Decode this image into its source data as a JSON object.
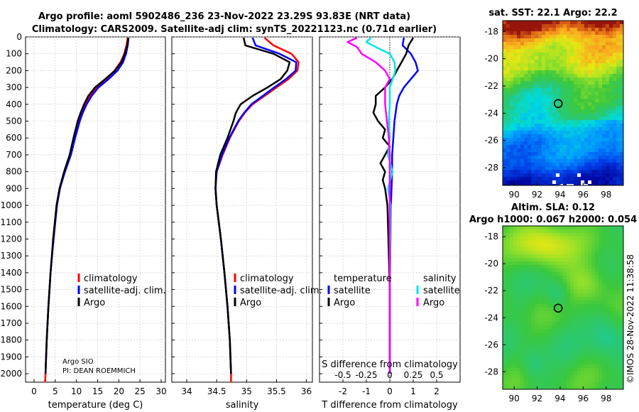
{
  "title_line1": "Argo profile: aoml 5902486_236 23-Nov-2022 23.29S 93.83E (NRT data)",
  "title_line2": "Climatology: CARS2009. Satellite-adj clim: synTS_20221123.nc (0.71d earlier)",
  "colors": {
    "climatology": "#ff0000",
    "satellite": "#0000ff",
    "argo": "#000000",
    "sat_salinity": "#00e5ee",
    "argo_salinity": "#ff00ff"
  },
  "legends": {
    "temp_panel": [
      "climatology",
      "satellite-adj. clim.",
      "Argo"
    ],
    "sal_panel": [
      "climatology",
      "satellite-adj. clim.",
      "Argo"
    ],
    "diff_temp_title": "temperature",
    "diff_temp": [
      "satellite",
      "Argo"
    ],
    "diff_sal_title": "salinity",
    "diff_sal": [
      "satellite",
      "Argo"
    ]
  },
  "credits": {
    "institution": "Argo SIO",
    "pi": "PI: DEAN ROEMMICH"
  },
  "stamp": "©IMOS 28-Nov-2022 11:38:58",
  "sst_map": {
    "title": "sat. SST: 22.1 Argo: 22.2"
  },
  "sla_map": {
    "title1": "Altim. SLA: 0.12",
    "title2": "Argo h1000: 0.067 h2000: 0.054"
  },
  "chart_data": [
    {
      "type": "line",
      "name": "temperature",
      "xlabel": "temperature (deg C)",
      "ylabel": "",
      "xlim": [
        -2,
        31
      ],
      "ylim": [
        2050,
        0
      ],
      "xticks": [
        "0",
        "5",
        "10",
        "15",
        "20",
        "25",
        "30"
      ],
      "xtick_values": [
        0,
        5,
        10,
        15,
        20,
        25,
        30
      ],
      "yticks": [
        "0",
        "100",
        "200",
        "300",
        "400",
        "500",
        "600",
        "700",
        "800",
        "900",
        "1000",
        "1100",
        "1200",
        "1300",
        "1400",
        "1500",
        "1600",
        "1700",
        "1800",
        "1900",
        "2000"
      ],
      "series": [
        {
          "name": "climatology",
          "pressure": [
            5,
            50,
            100,
            150,
            200,
            250,
            300,
            350,
            400,
            450,
            500,
            600,
            700,
            800,
            900,
            1000,
            1200,
            1400,
            1600,
            1800,
            2000,
            2050
          ],
          "values": [
            22.1,
            21.8,
            21.3,
            20.4,
            19.0,
            17.0,
            14.7,
            13.2,
            12.1,
            11.3,
            10.6,
            9.5,
            8.6,
            7.2,
            6.1,
            5.4,
            4.6,
            3.9,
            3.4,
            3.0,
            2.7,
            2.6
          ]
        },
        {
          "name": "satellite-adj. clim.",
          "pressure": [
            5,
            50,
            100,
            150,
            200,
            250,
            300,
            350,
            400,
            450,
            500,
            600,
            700,
            800,
            900,
            1000,
            1200,
            1400,
            1600,
            1800,
            2000
          ],
          "values": [
            22.3,
            22.1,
            21.7,
            21.0,
            19.7,
            17.6,
            15.2,
            13.6,
            12.4,
            11.5,
            10.8,
            9.7,
            8.7,
            7.3,
            6.1,
            5.4,
            4.6,
            3.9,
            3.4,
            3.0,
            2.7
          ]
        },
        {
          "name": "Argo",
          "pressure": [
            5,
            50,
            100,
            150,
            200,
            250,
            300,
            350,
            400,
            450,
            500,
            600,
            700,
            800,
            900,
            1000,
            1200,
            1400,
            1600,
            1800,
            2000
          ],
          "values": [
            22.2,
            22.0,
            21.4,
            20.6,
            19.1,
            16.8,
            14.4,
            12.8,
            11.8,
            11.0,
            10.3,
            9.3,
            8.4,
            7.1,
            6.0,
            5.3,
            4.5,
            3.9,
            3.4,
            3.0,
            2.7
          ]
        }
      ]
    },
    {
      "type": "line",
      "name": "salinity",
      "xlabel": "salinity",
      "ylabel": "",
      "xlim": [
        33.75,
        36.1
      ],
      "ylim": [
        2050,
        0
      ],
      "xticks": [
        "34",
        "34.5",
        "35",
        "35.5",
        "36"
      ],
      "xtick_values": [
        34,
        34.5,
        35,
        35.5,
        36
      ],
      "series": [
        {
          "name": "climatology",
          "pressure": [
            5,
            50,
            100,
            150,
            200,
            250,
            300,
            350,
            400,
            450,
            500,
            600,
            700,
            800,
            900,
            1000,
            1200,
            1400,
            1600,
            1800,
            2000,
            2050
          ],
          "values": [
            35.3,
            35.45,
            35.75,
            35.87,
            35.85,
            35.7,
            35.5,
            35.3,
            35.1,
            34.97,
            34.87,
            34.72,
            34.6,
            34.5,
            34.48,
            34.5,
            34.57,
            34.63,
            34.68,
            34.72,
            34.74,
            34.74
          ]
        },
        {
          "name": "satellite-adj. clim.",
          "pressure": [
            5,
            50,
            100,
            150,
            200,
            250,
            300,
            350,
            400,
            450,
            500,
            600,
            700,
            800,
            900,
            1000,
            1200,
            1400,
            1600,
            1800,
            2000
          ],
          "values": [
            35.1,
            35.15,
            35.55,
            35.83,
            35.82,
            35.66,
            35.46,
            35.27,
            35.08,
            34.96,
            34.86,
            34.71,
            34.59,
            34.5,
            34.48,
            34.5,
            34.57,
            34.63,
            34.68,
            34.72,
            34.74
          ]
        },
        {
          "name": "Argo",
          "pressure": [
            5,
            50,
            100,
            150,
            200,
            250,
            300,
            350,
            400,
            450,
            500,
            600,
            700,
            800,
            900,
            1000,
            1200,
            1400,
            1600,
            1800,
            2000
          ],
          "values": [
            34.95,
            34.98,
            35.45,
            35.72,
            35.68,
            35.57,
            35.35,
            35.1,
            34.9,
            34.82,
            34.78,
            34.68,
            34.56,
            34.49,
            34.48,
            34.5,
            34.57,
            34.63,
            34.68,
            34.72,
            34.74
          ]
        }
      ]
    },
    {
      "type": "line",
      "name": "difference from climatology",
      "xlabel": "T difference from climatology",
      "xlabel2": "S difference from climatology",
      "xlim": [
        -3,
        3
      ],
      "ylim": [
        2050,
        0
      ],
      "xticks": [
        "-2",
        "-1",
        "0",
        "1",
        "2"
      ],
      "xtick_values": [
        -2,
        -1,
        0,
        1,
        2
      ],
      "sticks": [
        "-0.5",
        "-0.25",
        "0",
        "0.25",
        "0.5"
      ],
      "stick_values": [
        -0.5,
        -0.25,
        0,
        0.25,
        0.5
      ],
      "series": [
        {
          "name": "temperature satellite",
          "pressure": [
            5,
            50,
            100,
            150,
            200,
            250,
            300,
            350,
            400,
            500,
            600,
            700,
            800,
            1000,
            1500,
            2000
          ],
          "values": [
            0.6,
            0.55,
            0.9,
            1.1,
            1.2,
            0.9,
            0.6,
            0.4,
            0.3,
            0.2,
            0.15,
            0.1,
            0.1,
            0.05,
            0.0,
            0.0
          ]
        },
        {
          "name": "temperature Argo",
          "pressure": [
            5,
            50,
            100,
            150,
            200,
            250,
            300,
            350,
            400,
            450,
            500,
            550,
            600,
            650,
            700,
            750,
            800,
            850,
            900,
            1000,
            1500,
            2000
          ],
          "values": [
            1.0,
            0.8,
            0.7,
            0.5,
            0.3,
            0.1,
            -0.2,
            -0.6,
            -0.6,
            -0.7,
            -0.5,
            -0.2,
            -0.3,
            0.0,
            -0.2,
            -0.4,
            -0.2,
            -0.3,
            -0.2,
            -0.1,
            0.0,
            0.0
          ]
        },
        {
          "name": "salinity satellite",
          "pressure": [
            5,
            30,
            60,
            100,
            150,
            200,
            250,
            300,
            400,
            500,
            600,
            700,
            800,
            900,
            1000,
            1500,
            2000
          ],
          "values": [
            -0.2,
            -0.25,
            -0.15,
            0.0,
            0.05,
            0.06,
            0.03,
            0.0,
            0.0,
            -0.01,
            0.0,
            -0.02,
            0.03,
            -0.02,
            0.01,
            0.0,
            0.0
          ]
        },
        {
          "name": "salinity Argo",
          "pressure": [
            5,
            30,
            60,
            100,
            150,
            200,
            250,
            300,
            400,
            500,
            600,
            700,
            800,
            900,
            1000,
            1500,
            2000
          ],
          "values": [
            -0.35,
            -0.45,
            -0.35,
            -0.3,
            -0.15,
            -0.05,
            0.0,
            -0.05,
            -0.05,
            -0.03,
            -0.01,
            0.0,
            0.0,
            0.0,
            0.0,
            0.0,
            0.0
          ]
        }
      ]
    },
    {
      "type": "heatmap",
      "name": "sat. SST",
      "xticks": [
        "90",
        "92",
        "94",
        "96",
        "98"
      ],
      "yticks": [
        "-18",
        "-20",
        "-22",
        "-24",
        "-26",
        "-28"
      ],
      "xlim": [
        89,
        99.5
      ],
      "ylim": [
        -29.3,
        -17.2
      ],
      "argo_position": {
        "lon": 93.83,
        "lat": -23.29
      }
    },
    {
      "type": "heatmap",
      "name": "Altim. SLA",
      "xticks": [
        "90",
        "92",
        "94",
        "96",
        "98"
      ],
      "yticks": [
        "-18",
        "-20",
        "-22",
        "-24",
        "-26",
        "-28"
      ],
      "xlim": [
        89,
        99.5
      ],
      "ylim": [
        -29.3,
        -17.2
      ],
      "argo_position": {
        "lon": 93.83,
        "lat": -23.29
      }
    }
  ]
}
